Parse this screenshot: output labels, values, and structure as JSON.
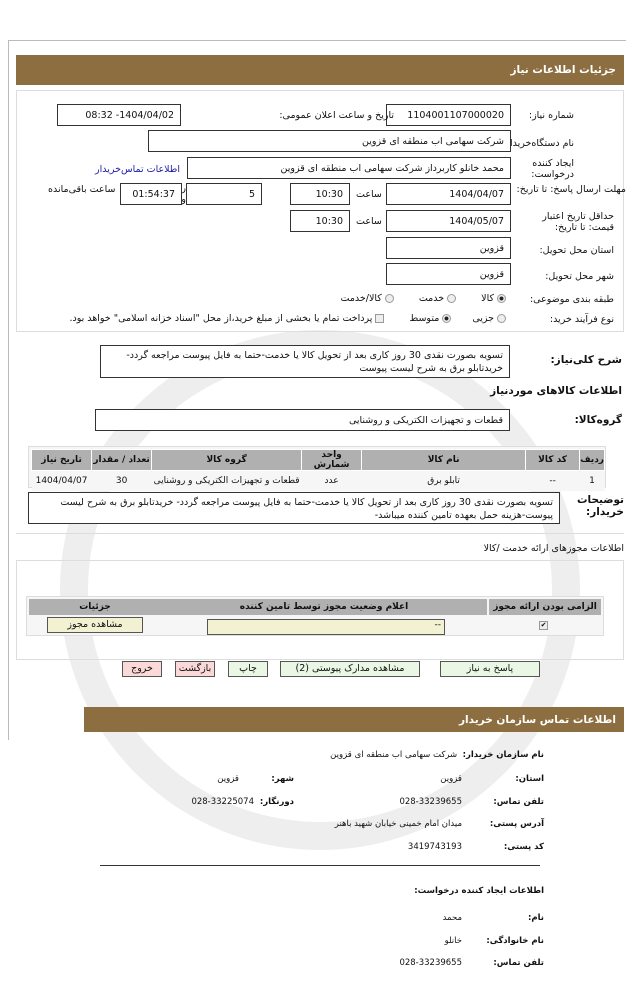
{
  "header": {
    "title": "جزئیات اطلاعات نیاز"
  },
  "form": {
    "need_number_label": "شماره نیاز:",
    "need_number": "1104001107000020",
    "announce_label": "تاریخ و ساعت اعلان عمومی:",
    "announce_value": "1404/04/02- 08:32",
    "buyer_org_label": "نام دستگاه‌خریدار:",
    "buyer_org": "شرکت سهامی اب منطقه ای قزوین",
    "creator_label": "ایجاد کننده درخواست:",
    "creator": "محمد خانلو کاربرداز شرکت سهامی اب منطقه ای قزوین",
    "contact_link": "اطلاعات تماس‌خریدار",
    "deadline_label": "مهلت ارسال پاسخ: تا تاریخ:",
    "deadline_date": "1404/04/07",
    "time_label": "ساعت",
    "deadline_time": "10:30",
    "days": "5",
    "days_label": "روز و",
    "remaining": "01:54:37",
    "remaining_label": "ساعت باقی‌مانده",
    "validity_label": "حداقل تاریخ اعتبار قیمت: تا تاریخ:",
    "validity_date": "1404/05/07",
    "validity_time": "10:30",
    "province_label": "استان محل تحویل:",
    "province": "قزوین",
    "city_label": "شهر محل تحویل:",
    "city": "قزوین",
    "category_label": "طبقه بندی موضوعی:",
    "category_options": [
      "کالا",
      "خدمت",
      "کالا/خدمت"
    ],
    "category_selected": "کالا",
    "process_label": "نوع فرآیند خرید:",
    "process_options": [
      "جزیی",
      "متوسط"
    ],
    "process_selected": "متوسط",
    "treasury_text": "پرداخت تمام یا بخشی از مبلغ خرید،از محل \"اسناد خزانه اسلامی\" خواهد بود."
  },
  "summary": {
    "label": "شرح کلی‌نیاز:",
    "text": "تسویه بصورت نقدی 30 روز کاری بعد از تحویل کالا یا خدمت-حتما به فایل پیوست مراجعه گردد- خریدتابلو برق به شرح لیست پیوست"
  },
  "goods": {
    "title": "اطلاعات کالاهای موردنیاز",
    "group_label": "گروه‌کالا:",
    "group": "قطعات و تجهیزات الکتریکی و روشنایی",
    "columns": [
      "ردیف",
      "کد کالا",
      "نام کالا",
      "واحد شمارش",
      "گروه کالا",
      "تعداد / مقدار",
      "تاریخ نیاز"
    ],
    "rows": [
      [
        "1",
        "--",
        "تابلو برق",
        "عدد",
        "قطعات و تجهیزات الکتریکی و روشنایی",
        "30",
        "1404/04/07"
      ]
    ]
  },
  "notes": {
    "label": "توضیحات خریدار:",
    "text": "تسویه بصورت نقدی 30 روز کاری بعد از تحویل کالا یا خدمت-حتما به فایل پیوست مراجعه گردد- خریدتابلو برق به شرح لیست پیوست-هزینه حمل بعهده تامین کننده میباشد-"
  },
  "permits": {
    "title": "اطلاعات مجوزهای ارائه خدمت /کالا",
    "columns": [
      "الزامی بودن ارائه مجوز",
      "اعلام وضعیت مجوز توسط تامین کننده",
      "جزئیات"
    ],
    "status": "--",
    "view_button": "مشاهده مجوز",
    "required": true
  },
  "buttons": {
    "reply": "پاسخ به نیاز",
    "attachments": "مشاهده مدارک پیوستی (2)",
    "print": "چاپ",
    "back": "بازگشت",
    "exit": "خروج"
  },
  "contact": {
    "title": "اطلاعات تماس سازمان خریدار",
    "org_label": "نام سازمان خریدار:",
    "org": "شرکت سهامی اب منطقه ای قزوین",
    "province_label": "استان:",
    "province": "قزوین",
    "city_label": "شهر:",
    "city": "قزوین",
    "phone_label": "تلفن تماس:",
    "phone": "028-33239655",
    "fax_label": "دورنگار:",
    "fax": "028-33225074",
    "address_label": "آدرس پستی:",
    "address": "میدان امام خمینی خیابان شهید باهنر",
    "postal_label": "کد پستی:",
    "postal": "3419743193",
    "creator_title": "اطلاعات ایجاد کننده درخواست:",
    "name_label": "نام:",
    "name": "محمد",
    "family_label": "نام خانوادگی:",
    "family": "خانلو",
    "cphone_label": "تلفن تماس:",
    "cphone": "028-33239655"
  }
}
